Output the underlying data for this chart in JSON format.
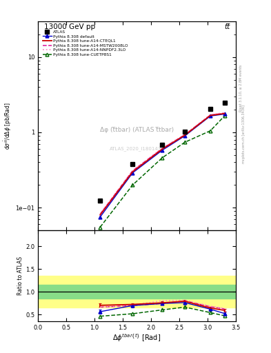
{
  "title_top": "13000 GeV pp",
  "title_right": "tt̅",
  "plot_title": "Δφ (t̅tbar) (ATLAS t̅tbar)",
  "watermark": "ATLAS_2020_I1801434",
  "rivet_text": "Rivet 3.1.10, ≥ 2.8M events",
  "mcplots_text": "mcplots.cern.ch [arXiv:1306.3436]",
  "atlas_x": [
    1.1,
    1.675,
    2.2,
    2.6,
    3.05,
    3.3
  ],
  "atlas_y": [
    0.125,
    0.38,
    0.68,
    1.02,
    2.05,
    2.5
  ],
  "x_points": [
    1.1,
    1.675,
    2.2,
    2.6,
    3.05,
    3.3
  ],
  "py_default_y": [
    0.075,
    0.29,
    0.58,
    0.9,
    1.65,
    1.75
  ],
  "py_cteql1_y": [
    0.08,
    0.3,
    0.6,
    0.92,
    1.68,
    1.78
  ],
  "py_mstw_y": [
    0.082,
    0.31,
    0.61,
    0.93,
    1.7,
    1.8
  ],
  "py_nnpdf_y": [
    0.083,
    0.31,
    0.62,
    0.94,
    1.72,
    1.82
  ],
  "py_cuetp_y": [
    0.055,
    0.2,
    0.46,
    0.74,
    1.05,
    1.65
  ],
  "ratio_default": [
    0.56,
    0.695,
    0.74,
    0.76,
    0.615,
    0.52
  ],
  "ratio_cteql1": [
    0.7,
    0.72,
    0.755,
    0.79,
    0.64,
    0.59
  ],
  "ratio_mstw": [
    0.66,
    0.695,
    0.74,
    0.8,
    0.67,
    0.62
  ],
  "ratio_nnpdf": [
    0.66,
    0.71,
    0.8,
    0.81,
    0.68,
    0.63
  ],
  "ratio_cuetp": [
    0.46,
    0.515,
    0.6,
    0.66,
    0.54,
    0.47
  ],
  "color_default": "#0000cc",
  "color_cteql1": "#cc0000",
  "color_mstw": "#dd1199",
  "color_nnpdf": "#ff88cc",
  "color_cuetp": "#006600",
  "band_green_lo": 0.85,
  "band_green_hi": 1.15,
  "band_yellow_lo": 0.65,
  "band_yellow_hi": 1.35,
  "xlim": [
    0,
    3.5
  ],
  "ylim_main": [
    0.05,
    30
  ],
  "ylim_ratio": [
    0.35,
    2.35
  ],
  "ratio_yticks": [
    0.5,
    1.0,
    1.5,
    2.0
  ],
  "main_yticks": [
    0.1,
    1,
    10
  ]
}
